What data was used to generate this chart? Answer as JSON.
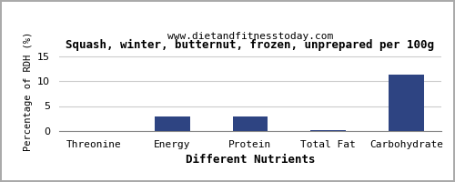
{
  "title": "Squash, winter, butternut, frozen, unprepared per 100g",
  "subtitle": "www.dietandfitnesstoday.com",
  "categories": [
    "Threonine",
    "Energy",
    "Protein",
    "Total Fat",
    "Carbohydrate"
  ],
  "values": [
    0.0,
    3.0,
    3.0,
    0.1,
    11.3
  ],
  "bar_color": "#2e4482",
  "xlabel": "Different Nutrients",
  "ylabel": "Percentage of RDH (%)",
  "ylim": [
    0,
    16
  ],
  "yticks": [
    0,
    5,
    10,
    15
  ],
  "title_fontsize": 9,
  "subtitle_fontsize": 8,
  "xlabel_fontsize": 9,
  "ylabel_fontsize": 7.5,
  "tick_fontsize": 8,
  "background_color": "#ffffff",
  "plot_bg_color": "#ffffff",
  "grid_color": "#cccccc",
  "border_color": "#aaaaaa"
}
